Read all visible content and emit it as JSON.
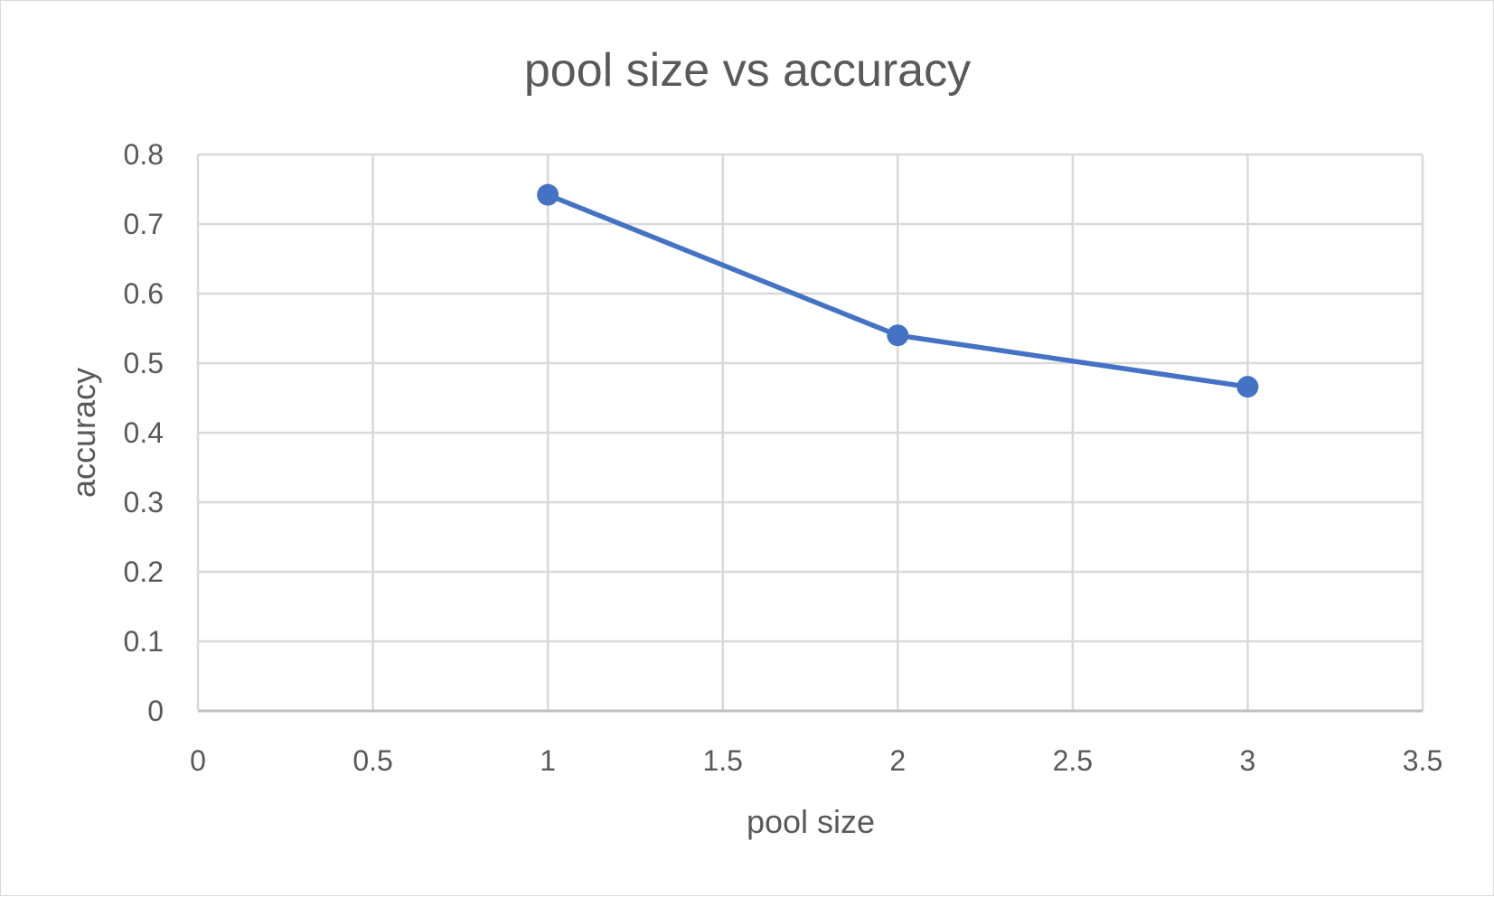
{
  "chart_data": {
    "type": "line",
    "title": "pool size vs accuracy",
    "xlabel": "pool size",
    "ylabel": "accuracy",
    "xlim": [
      0,
      3.5
    ],
    "ylim": [
      0,
      0.8
    ],
    "x_ticks": [
      "0",
      "0.5",
      "1",
      "1.5",
      "2",
      "2.5",
      "3",
      "3.5"
    ],
    "y_ticks": [
      "0",
      "0.1",
      "0.2",
      "0.3",
      "0.4",
      "0.5",
      "0.6",
      "0.7",
      "0.8"
    ],
    "grid": true,
    "legend": "none",
    "series": [
      {
        "x": [
          1,
          2,
          3
        ],
        "y": [
          0.742,
          0.54,
          0.466
        ],
        "color": "#4472C4"
      }
    ]
  }
}
